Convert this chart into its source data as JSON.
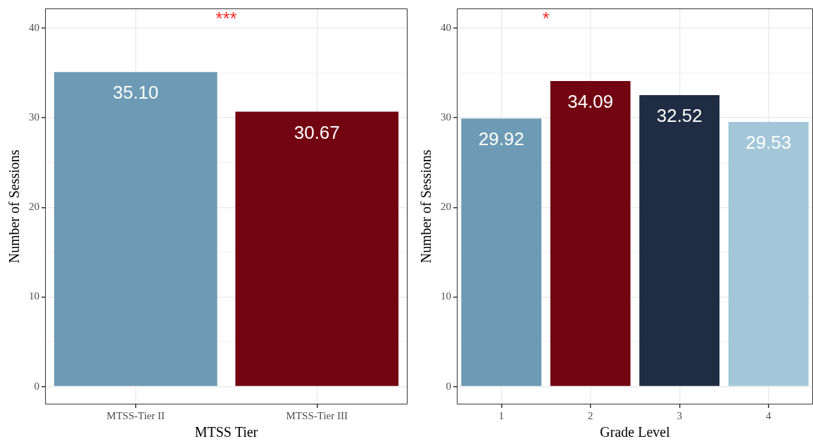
{
  "chart_data": [
    {
      "type": "bar",
      "xlabel": "MTSS Tier",
      "ylabel": "Number of Sessions",
      "categories": [
        "MTSS-Tier II",
        "MTSS-Tier III"
      ],
      "values": [
        35.1,
        30.67
      ],
      "value_labels": [
        "35.10",
        "30.67"
      ],
      "colors": [
        "#6d9bb5",
        "#720511"
      ],
      "ylim": [
        -2,
        42.2
      ],
      "yticks": [
        0,
        {
          "value": 5,
          "label": null
        },
        10,
        {
          "value": 15,
          "label": null
        },
        20,
        {
          "value": 25,
          "label": null
        },
        30,
        {
          "value": 35,
          "label": null
        },
        40
      ],
      "grid": true,
      "legend": false,
      "annotations": [
        "***"
      ]
    },
    {
      "type": "bar",
      "xlabel": "Grade Level",
      "ylabel": "Number of Sessions",
      "categories": [
        "1",
        "2",
        "3",
        "4"
      ],
      "values": [
        29.92,
        34.09,
        32.52,
        29.53
      ],
      "value_labels": [
        "29.92",
        "34.09",
        "32.52",
        "29.53"
      ],
      "colors": [
        "#6d9bb5",
        "#720511",
        "#1f2c44",
        "#a3c7d8"
      ],
      "ylim": [
        -2,
        42.2
      ],
      "yticks": [
        0,
        {
          "value": 5,
          "label": null
        },
        10,
        {
          "value": 15,
          "label": null
        },
        20,
        {
          "value": 25,
          "label": null
        },
        30,
        {
          "value": 35,
          "label": null
        },
        40
      ],
      "grid": true,
      "legend": false,
      "annotations": [
        "*"
      ]
    }
  ]
}
